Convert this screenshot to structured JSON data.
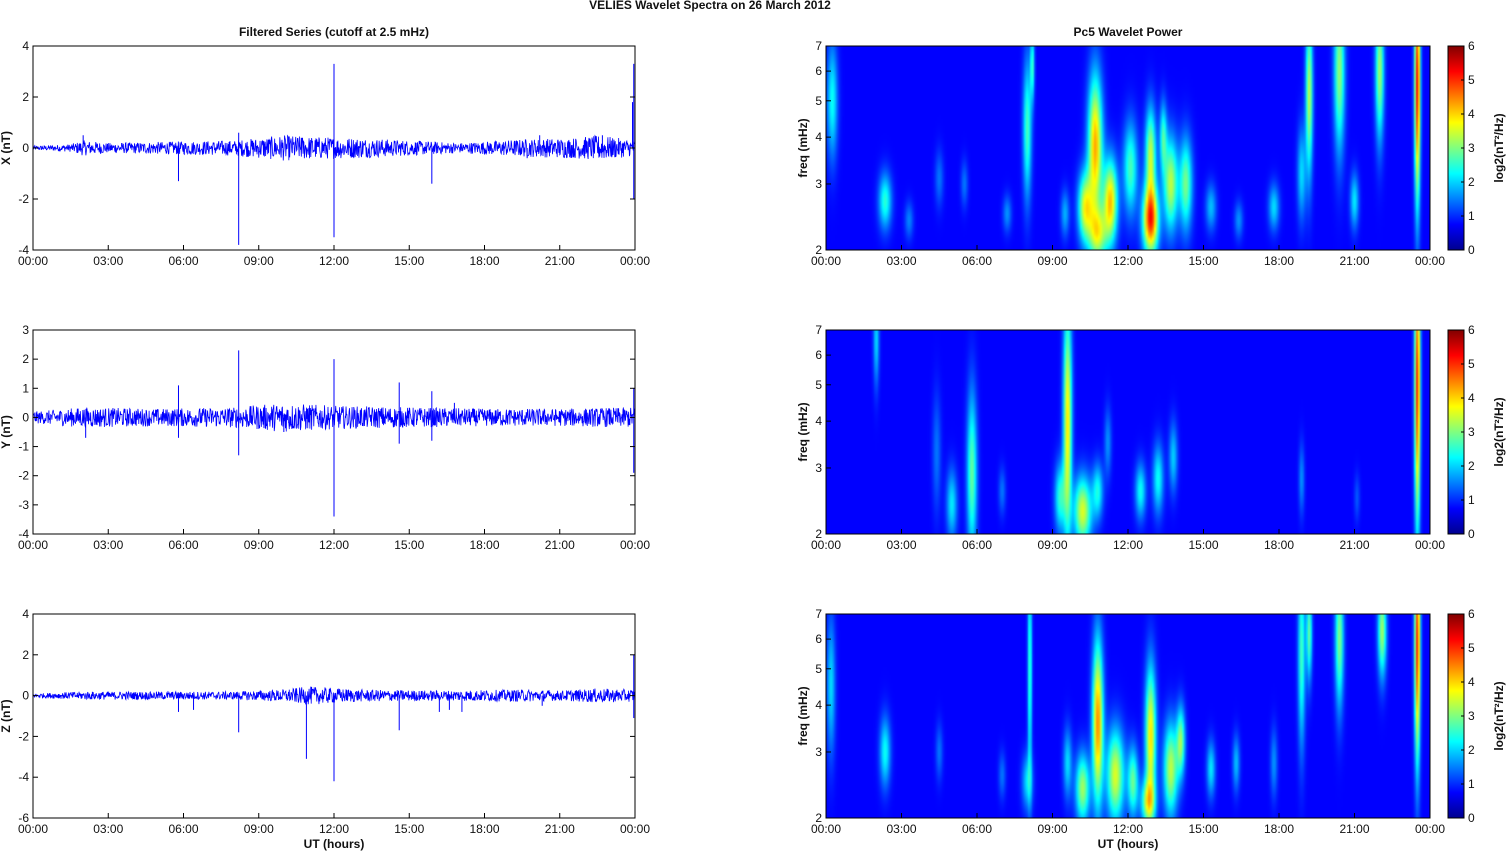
{
  "figure": {
    "title": "VELIES Wavelet Spectra on 26 March      2012",
    "left_title": "Filtered Series (cutoff at 2.5 mHz)",
    "right_title": "Pc5 Wavelet Power"
  },
  "chart_data": [
    {
      "type": "line",
      "name": "X filtered series",
      "ylabel": "X (nT)",
      "xlabel": "",
      "ylim": [
        -4,
        4
      ],
      "yticks": [
        "4",
        "2",
        "0",
        "-2",
        "-4"
      ],
      "xticks": [
        "00:00",
        "03:00",
        "06:00",
        "09:00",
        "12:00",
        "15:00",
        "18:00",
        "21:00",
        "00:00"
      ],
      "xlim_hours": [
        0,
        24
      ],
      "line_color": "#0000ff",
      "spikes": [
        [
          2.0,
          0.5
        ],
        [
          5.8,
          -1.3
        ],
        [
          8.2,
          0.6
        ],
        [
          8.2,
          -3.8
        ],
        [
          10.7,
          0.4
        ],
        [
          12.0,
          3.3
        ],
        [
          12.0,
          -3.5
        ],
        [
          15.9,
          -1.4
        ],
        [
          19.7,
          -0.4
        ],
        [
          20.2,
          0.5
        ],
        [
          22.7,
          0.5
        ],
        [
          23.95,
          3.3
        ],
        [
          23.95,
          -2.0
        ],
        [
          23.9,
          1.8
        ]
      ],
      "activity": [
        [
          0,
          0.08
        ],
        [
          1.5,
          0.15
        ],
        [
          2.0,
          0.3
        ],
        [
          3.0,
          0.2
        ],
        [
          8.0,
          0.3
        ],
        [
          10.0,
          0.5
        ],
        [
          11.0,
          0.45
        ],
        [
          13.0,
          0.4
        ],
        [
          15.0,
          0.3
        ],
        [
          17.0,
          0.2
        ],
        [
          19.6,
          0.35
        ],
        [
          21.5,
          0.4
        ],
        [
          22.6,
          0.5
        ],
        [
          24,
          0.3
        ]
      ]
    },
    {
      "type": "line",
      "name": "Y filtered series",
      "ylabel": "Y (nT)",
      "xlabel": "",
      "ylim": [
        -4,
        3
      ],
      "yticks": [
        "3",
        "2",
        "1",
        "0",
        "-1",
        "-2",
        "-3",
        "-4"
      ],
      "xticks": [
        "00:00",
        "03:00",
        "06:00",
        "09:00",
        "12:00",
        "15:00",
        "18:00",
        "21:00",
        "00:00"
      ],
      "xlim_hours": [
        0,
        24
      ],
      "line_color": "#0000ff",
      "spikes": [
        [
          2.1,
          -0.7
        ],
        [
          5.8,
          1.1
        ],
        [
          5.8,
          -0.7
        ],
        [
          8.2,
          2.3
        ],
        [
          8.2,
          -1.3
        ],
        [
          10.0,
          -0.5
        ],
        [
          12.0,
          2.0
        ],
        [
          12.0,
          -3.4
        ],
        [
          14.6,
          1.2
        ],
        [
          14.6,
          -0.9
        ],
        [
          15.9,
          0.9
        ],
        [
          15.9,
          -0.8
        ],
        [
          16.8,
          0.5
        ],
        [
          23.95,
          1.0
        ],
        [
          23.95,
          -1.9
        ]
      ],
      "activity": [
        [
          0,
          0.2
        ],
        [
          2.0,
          0.35
        ],
        [
          5.0,
          0.3
        ],
        [
          8.0,
          0.35
        ],
        [
          10.0,
          0.5
        ],
        [
          12.0,
          0.4
        ],
        [
          15.0,
          0.35
        ],
        [
          18.0,
          0.3
        ],
        [
          21.0,
          0.3
        ],
        [
          24,
          0.35
        ]
      ]
    },
    {
      "type": "line",
      "name": "Z filtered series",
      "ylabel": "Z (nT)",
      "xlabel": "UT (hours)",
      "ylim": [
        -6,
        4
      ],
      "yticks": [
        "4",
        "2",
        "0",
        "-2",
        "-4",
        "-6"
      ],
      "xticks": [
        "00:00",
        "03:00",
        "06:00",
        "09:00",
        "12:00",
        "15:00",
        "18:00",
        "21:00",
        "00:00"
      ],
      "xlim_hours": [
        0,
        24
      ],
      "line_color": "#0000ff",
      "spikes": [
        [
          5.8,
          -0.8
        ],
        [
          6.4,
          -0.7
        ],
        [
          8.2,
          -1.8
        ],
        [
          10.9,
          -3.1
        ],
        [
          12.0,
          -4.2
        ],
        [
          14.6,
          -1.7
        ],
        [
          16.2,
          -0.8
        ],
        [
          16.6,
          -0.7
        ],
        [
          17.1,
          -0.8
        ],
        [
          20.3,
          -0.5
        ],
        [
          23.95,
          2.0
        ],
        [
          23.95,
          -1.1
        ]
      ],
      "activity": [
        [
          0,
          0.1
        ],
        [
          2.0,
          0.2
        ],
        [
          8.0,
          0.2
        ],
        [
          10.0,
          0.3
        ],
        [
          11.0,
          0.45
        ],
        [
          13.0,
          0.3
        ],
        [
          16.0,
          0.25
        ],
        [
          19.6,
          0.3
        ],
        [
          21.0,
          0.25
        ],
        [
          22.5,
          0.35
        ],
        [
          24,
          0.3
        ]
      ]
    },
    {
      "type": "heatmap",
      "name": "X wavelet power",
      "ylabel": "freq (mHz)",
      "xlabel": "",
      "yscale": "log",
      "ylim": [
        2,
        7
      ],
      "yticks": [
        "7",
        "6",
        "5",
        "4",
        "3",
        "2"
      ],
      "xticks": [
        "00:00",
        "03:00",
        "06:00",
        "09:00",
        "12:00",
        "15:00",
        "18:00",
        "21:00",
        "00:00"
      ],
      "colorbar": {
        "label": "log2(nT²/Hz)",
        "ticks": [
          "6",
          "5",
          "4",
          "3",
          "2",
          "1",
          "0"
        ],
        "range": [
          0,
          6
        ]
      },
      "blobs": [
        [
          0.25,
          5.0,
          0.15,
          0.25,
          1.8
        ],
        [
          2.35,
          2.7,
          0.18,
          0.12,
          2.0
        ],
        [
          3.3,
          2.4,
          0.12,
          0.08,
          0.9
        ],
        [
          4.5,
          3.1,
          0.12,
          0.12,
          0.8
        ],
        [
          5.5,
          3.0,
          0.1,
          0.1,
          0.8
        ],
        [
          7.2,
          2.5,
          0.12,
          0.08,
          1.0
        ],
        [
          8.0,
          4.2,
          0.12,
          0.3,
          2.2
        ],
        [
          8.2,
          6.2,
          0.06,
          0.15,
          2.0
        ],
        [
          9.5,
          2.5,
          0.12,
          0.1,
          1.2
        ],
        [
          10.3,
          2.6,
          0.2,
          0.15,
          3.2
        ],
        [
          10.7,
          3.8,
          0.2,
          0.3,
          4.0
        ],
        [
          10.8,
          2.2,
          0.25,
          0.12,
          2.8
        ],
        [
          11.3,
          2.7,
          0.2,
          0.18,
          3.8
        ],
        [
          12.1,
          3.3,
          0.2,
          0.2,
          2.2
        ],
        [
          12.9,
          2.4,
          0.22,
          0.15,
          4.8
        ],
        [
          12.9,
          3.6,
          0.15,
          0.2,
          3.0
        ],
        [
          13.7,
          3.0,
          0.2,
          0.2,
          3.0
        ],
        [
          14.3,
          3.0,
          0.18,
          0.2,
          2.5
        ],
        [
          13.4,
          4.0,
          0.1,
          0.15,
          2.0
        ],
        [
          15.3,
          2.6,
          0.15,
          0.1,
          1.3
        ],
        [
          16.4,
          2.4,
          0.12,
          0.08,
          1.0
        ],
        [
          17.8,
          2.6,
          0.15,
          0.1,
          1.5
        ],
        [
          18.9,
          3.2,
          0.12,
          0.2,
          1.5
        ],
        [
          19.2,
          5.2,
          0.1,
          0.35,
          3.0
        ],
        [
          20.4,
          6.0,
          0.15,
          0.35,
          2.7
        ],
        [
          21.0,
          2.7,
          0.12,
          0.12,
          1.6
        ],
        [
          22.0,
          6.0,
          0.12,
          0.3,
          2.8
        ],
        [
          23.5,
          5.5,
          0.08,
          0.5,
          5.2
        ]
      ]
    },
    {
      "type": "heatmap",
      "name": "Y wavelet power",
      "ylabel": "freq (mHz)",
      "xlabel": "",
      "yscale": "log",
      "ylim": [
        2,
        7
      ],
      "yticks": [
        "7",
        "6",
        "5",
        "4",
        "3",
        "2"
      ],
      "xticks": [
        "00:00",
        "03:00",
        "06:00",
        "09:00",
        "12:00",
        "15:00",
        "18:00",
        "21:00",
        "00:00"
      ],
      "colorbar": {
        "label": "log2(nT²/Hz)",
        "ticks": [
          "6",
          "5",
          "4",
          "3",
          "2",
          "1",
          "0"
        ],
        "range": [
          0,
          6
        ]
      },
      "blobs": [
        [
          2.0,
          6.6,
          0.08,
          0.2,
          1.5
        ],
        [
          4.4,
          3.3,
          0.12,
          0.25,
          0.8
        ],
        [
          5.0,
          2.4,
          0.15,
          0.15,
          1.6
        ],
        [
          5.8,
          2.9,
          0.14,
          0.35,
          2.4
        ],
        [
          7.0,
          2.6,
          0.1,
          0.1,
          0.8
        ],
        [
          9.3,
          2.5,
          0.15,
          0.15,
          2.0
        ],
        [
          9.6,
          4.0,
          0.12,
          0.5,
          3.6
        ],
        [
          10.2,
          2.3,
          0.25,
          0.15,
          3.2
        ],
        [
          10.8,
          2.6,
          0.15,
          0.12,
          1.8
        ],
        [
          11.2,
          3.5,
          0.1,
          0.15,
          1.0
        ],
        [
          12.5,
          2.6,
          0.15,
          0.12,
          1.8
        ],
        [
          13.2,
          2.8,
          0.15,
          0.15,
          1.8
        ],
        [
          13.8,
          3.2,
          0.12,
          0.15,
          1.4
        ],
        [
          18.9,
          2.8,
          0.08,
          0.15,
          1.0
        ],
        [
          21.1,
          2.5,
          0.08,
          0.1,
          0.6
        ],
        [
          23.5,
          5.0,
          0.08,
          0.6,
          5.0
        ]
      ]
    },
    {
      "type": "heatmap",
      "name": "Z wavelet power",
      "ylabel": "freq (mHz)",
      "xlabel": "UT (hours)",
      "yscale": "log",
      "ylim": [
        2,
        7
      ],
      "yticks": [
        "7",
        "6",
        "5",
        "4",
        "3",
        "2"
      ],
      "xticks": [
        "00:00",
        "03:00",
        "06:00",
        "09:00",
        "12:00",
        "15:00",
        "18:00",
        "21:00",
        "00:00"
      ],
      "colorbar": {
        "label": "log2(nT²/Hz)",
        "ticks": [
          "6",
          "5",
          "4",
          "3",
          "2",
          "1",
          "0"
        ],
        "range": [
          0,
          6
        ]
      },
      "blobs": [
        [
          0.2,
          4.5,
          0.12,
          0.3,
          1.5
        ],
        [
          2.35,
          3.0,
          0.15,
          0.15,
          1.8
        ],
        [
          4.5,
          3.0,
          0.1,
          0.12,
          0.8
        ],
        [
          7.0,
          2.6,
          0.1,
          0.1,
          0.8
        ],
        [
          8.0,
          2.5,
          0.15,
          0.12,
          1.5
        ],
        [
          8.1,
          5.0,
          0.06,
          0.5,
          2.2
        ],
        [
          9.6,
          2.8,
          0.12,
          0.15,
          1.5
        ],
        [
          10.2,
          2.4,
          0.2,
          0.15,
          2.8
        ],
        [
          10.8,
          3.6,
          0.15,
          0.35,
          4.2
        ],
        [
          11.5,
          2.6,
          0.25,
          0.2,
          3.2
        ],
        [
          12.2,
          2.5,
          0.15,
          0.15,
          2.4
        ],
        [
          12.9,
          3.3,
          0.15,
          0.3,
          3.6
        ],
        [
          12.8,
          2.2,
          0.2,
          0.1,
          2.8
        ],
        [
          13.7,
          2.7,
          0.2,
          0.2,
          3.0
        ],
        [
          14.1,
          3.2,
          0.12,
          0.15,
          2.6
        ],
        [
          15.3,
          2.7,
          0.12,
          0.12,
          1.6
        ],
        [
          16.3,
          2.8,
          0.1,
          0.12,
          1.3
        ],
        [
          17.8,
          2.8,
          0.1,
          0.15,
          1.0
        ],
        [
          18.9,
          5.5,
          0.1,
          0.4,
          2.2
        ],
        [
          19.2,
          6.2,
          0.08,
          0.2,
          2.4
        ],
        [
          20.4,
          6.0,
          0.12,
          0.3,
          2.6
        ],
        [
          22.1,
          6.3,
          0.12,
          0.2,
          2.8
        ],
        [
          23.5,
          5.8,
          0.08,
          0.5,
          5.0
        ]
      ]
    }
  ]
}
